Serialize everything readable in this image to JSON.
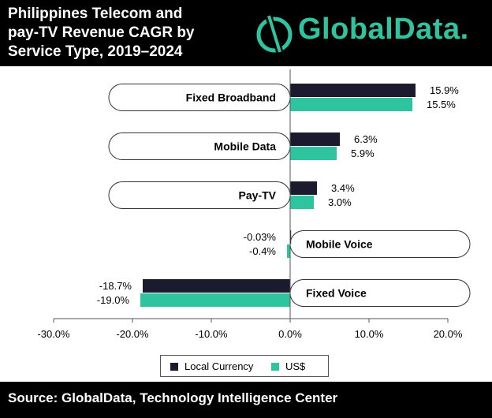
{
  "header": {
    "title_line1": "Philippines Telecom and",
    "title_line2": "pay-TV Revenue CAGR by",
    "title_line3": "Service Type, 2019–2024",
    "logo_text": "GlobalData."
  },
  "colors": {
    "local_currency": "#1c1a2e",
    "usd": "#2ec4a0",
    "logo": "#2ec4a0"
  },
  "chart_data": {
    "type": "bar",
    "orientation": "horizontal",
    "categories": [
      "Fixed Broadband",
      "Mobile Data",
      "Pay-TV",
      "Mobile Voice",
      "Fixed Voice"
    ],
    "series": [
      {
        "name": "Local Currency",
        "values": [
          15.9,
          6.3,
          3.4,
          -0.03,
          -18.7
        ],
        "labels": [
          "15.9%",
          "6.3%",
          "3.4%",
          "-0.03%",
          "-18.7%"
        ]
      },
      {
        "name": "US$",
        "values": [
          15.5,
          5.9,
          3.0,
          -0.4,
          -19.0
        ],
        "labels": [
          "15.5%",
          "5.9%",
          "3.0%",
          "-0.4%",
          "-19.0%"
        ]
      }
    ],
    "xlim": [
      -30,
      20
    ],
    "ticks": [
      -30,
      -20,
      -10,
      0,
      10,
      20
    ],
    "tick_labels": [
      "-30.0%",
      "-20.0%",
      "-10.0%",
      "0.0%",
      "10.0%",
      "20.0%"
    ],
    "legend_position": "bottom"
  },
  "footer": {
    "source": "Source: GlobalData, Technology Intelligence Center"
  }
}
